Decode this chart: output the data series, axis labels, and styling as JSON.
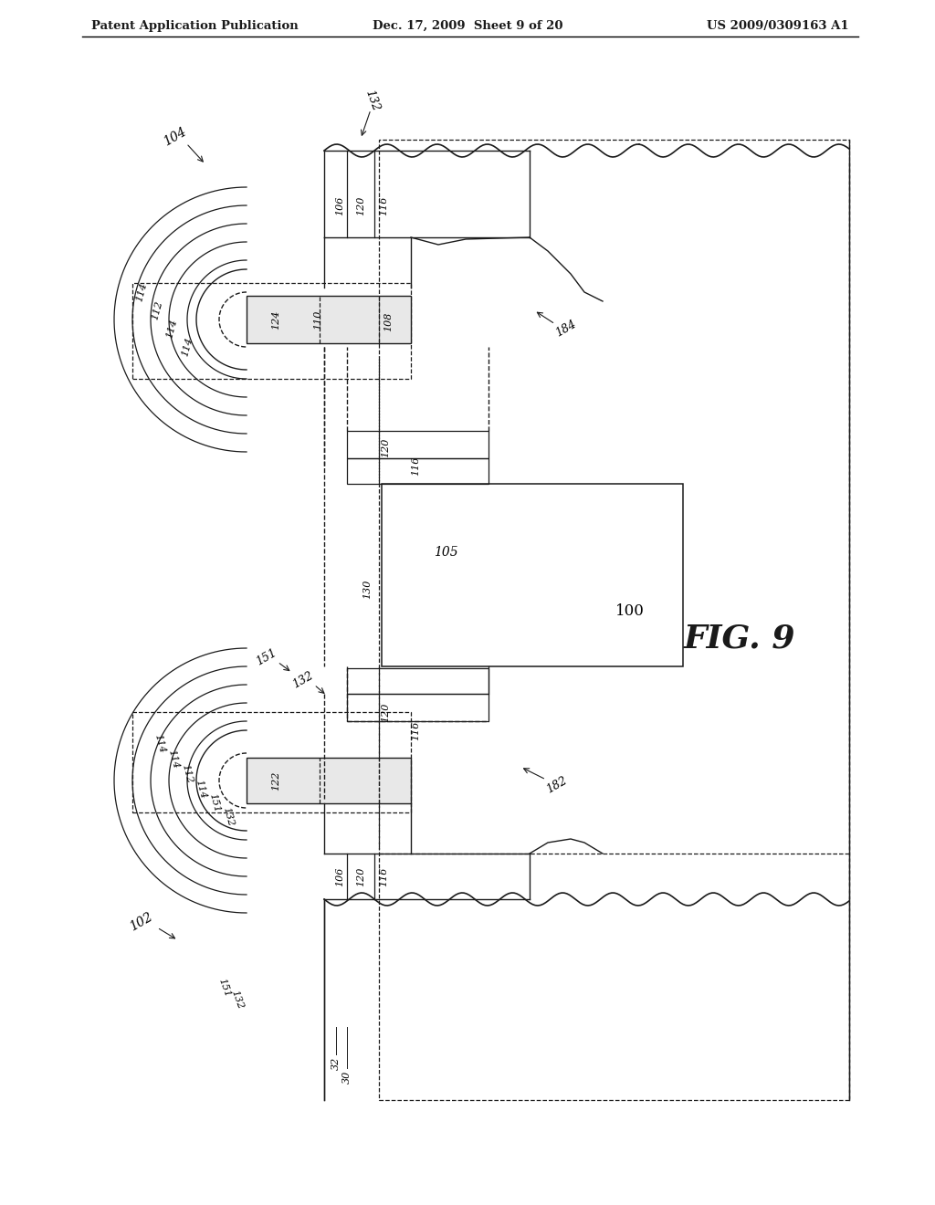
{
  "header_left": "Patent Application Publication",
  "header_mid": "Dec. 17, 2009  Sheet 9 of 20",
  "header_right": "US 2009/0309163 A1",
  "fig_label": "FIG. 9",
  "bg_color": "#ffffff",
  "line_color": "#1a1a1a",
  "dashed_color": "#1a1a1a"
}
